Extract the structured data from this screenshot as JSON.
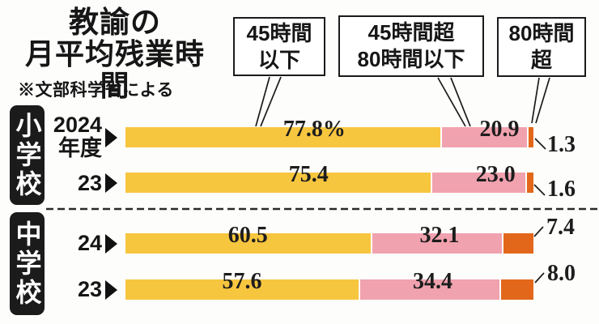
{
  "title": {
    "line1": "教諭の",
    "line2": "月平均残業時間"
  },
  "source_note": "※文部科学省による",
  "legend": [
    {
      "line1": "45時間",
      "line2": "以下"
    },
    {
      "line1": "45時間超",
      "line2": "80時間以下"
    },
    {
      "line1": "80時間",
      "line2": "超"
    }
  ],
  "sections": [
    {
      "name": "小学校",
      "rows": [
        {
          "year_lines": [
            "2024",
            "年度"
          ],
          "value_labels": [
            "77.8%",
            "20.9",
            "1.3"
          ]
        },
        {
          "year_lines": [
            "23"
          ],
          "value_labels": [
            "75.4",
            "23.0",
            "1.6"
          ]
        }
      ]
    },
    {
      "name": "中学校",
      "rows": [
        {
          "year_lines": [
            "24"
          ],
          "value_labels": [
            "60.5",
            "32.1",
            "7.4"
          ]
        },
        {
          "year_lines": [
            "23"
          ],
          "value_labels": [
            "57.6",
            "34.4",
            "8.0"
          ]
        }
      ]
    }
  ],
  "colors": {
    "under45": "#F7C63F",
    "45to80": "#F1A2AF",
    "over80": "#E2671B",
    "ink": "#1b1b1b"
  },
  "chart_data": {
    "type": "bar",
    "orientation": "horizontal",
    "stacked": true,
    "title": "教諭の月平均残業時間",
    "source_note": "※文部科学省による",
    "unit": "%",
    "categories": [
      "小学校 2024年度",
      "小学校 23年度",
      "中学校 24年度",
      "中学校 23年度"
    ],
    "series": [
      {
        "name": "45時間以下",
        "color": "#F7C63F",
        "values": [
          77.8,
          75.4,
          60.5,
          57.6
        ]
      },
      {
        "name": "45時間超80時間以下",
        "color": "#F1A2AF",
        "values": [
          20.9,
          23.0,
          32.1,
          34.4
        ]
      },
      {
        "name": "80時間超",
        "color": "#E2671B",
        "values": [
          1.3,
          1.6,
          7.4,
          8.0
        ]
      }
    ],
    "xlim": [
      0,
      100
    ],
    "legend_position": "top",
    "grid": false
  }
}
